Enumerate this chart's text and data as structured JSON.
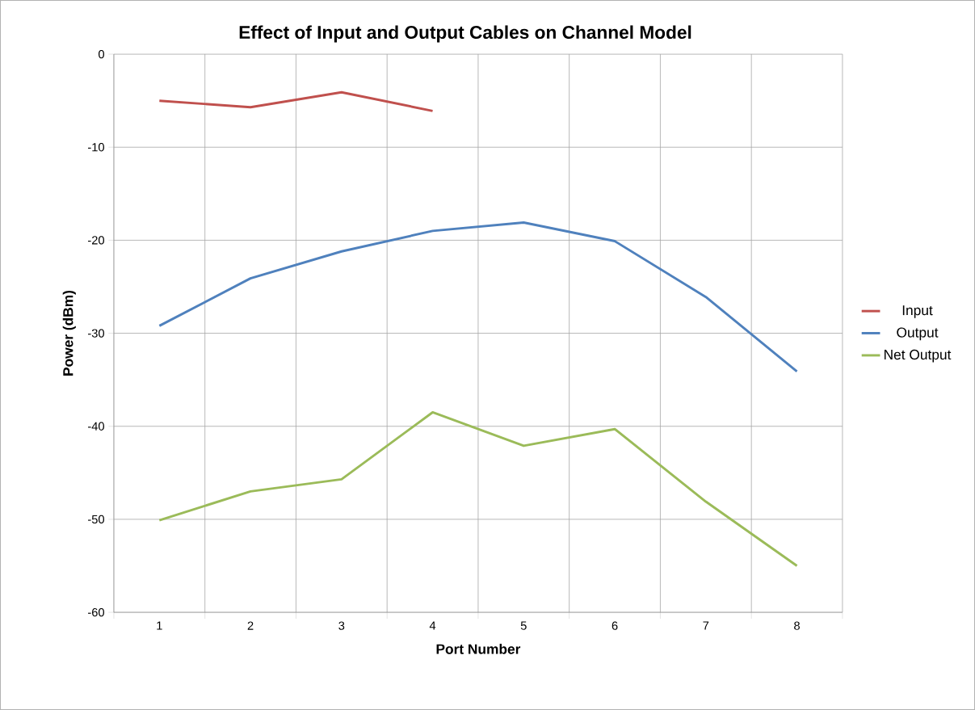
{
  "chart_data": {
    "type": "line",
    "title": "Effect of Input and Output Cables on Channel Model",
    "xlabel": "Port Number",
    "ylabel": "Power (dBm)",
    "categories": [
      "1",
      "2",
      "3",
      "4",
      "5",
      "6",
      "7",
      "8"
    ],
    "series": [
      {
        "name": "Input",
        "color": "#c0504d",
        "values": [
          -5.0,
          -5.7,
          -4.1,
          -6.1,
          null,
          null,
          null,
          null
        ]
      },
      {
        "name": "Output",
        "color": "#4f81bd",
        "values": [
          -29.2,
          -24.1,
          -21.2,
          -19.0,
          -18.1,
          -20.1,
          -26.1,
          -34.1
        ]
      },
      {
        "name": "Net Output",
        "color": "#9bbb59",
        "values": [
          -50.1,
          -47.0,
          -45.7,
          -38.5,
          -42.1,
          -40.3,
          -48.1,
          -55.0
        ]
      }
    ],
    "ylim": [
      -60,
      0
    ],
    "yticks": [
      -60,
      -50,
      -40,
      -30,
      -20,
      -10,
      0
    ],
    "grid": true,
    "legend": "right",
    "marker": "none",
    "line_style": "solid"
  }
}
